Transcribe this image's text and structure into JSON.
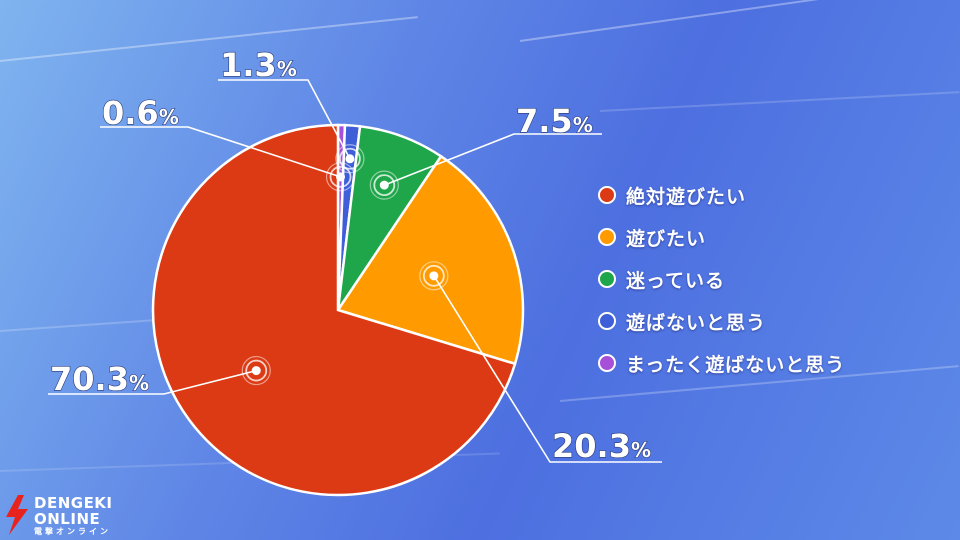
{
  "chart_data": {
    "type": "pie",
    "title": "",
    "start_angle_deg": 0,
    "direction": "clockwise",
    "slices": [
      {
        "label": "まったく遊ばないと思う",
        "value": 0.6,
        "value_label": "0.6",
        "color": "#a64fd8"
      },
      {
        "label": "遊ばないと思う",
        "value": 1.3,
        "value_label": "1.3",
        "color": "#3f5fd8"
      },
      {
        "label": "迷っている",
        "value": 7.5,
        "value_label": "7.5",
        "color": "#1fa64a"
      },
      {
        "label": "遊びたい",
        "value": 20.3,
        "value_label": "20.3",
        "color": "#ff9b00"
      },
      {
        "label": "絶対遊びたい",
        "value": 70.3,
        "value_label": "70.3",
        "color": "#dc3a14"
      }
    ],
    "unit_suffix": "%",
    "legend_position": "right"
  },
  "legend": {
    "items": [
      {
        "label": "絶対遊びたい",
        "color": "#dc3a14"
      },
      {
        "label": "遊びたい",
        "color": "#ff9b00"
      },
      {
        "label": "迷っている",
        "color": "#1fa64a"
      },
      {
        "label": "遊ばないと思う",
        "color": "#3f5fd8"
      },
      {
        "label": "まったく遊ばないと思う",
        "color": "#a64fd8"
      }
    ]
  },
  "logo": {
    "line1": "DENGEKI",
    "line2": "ONLINE",
    "sub": "電撃オンライン",
    "color": "#e8231d"
  }
}
